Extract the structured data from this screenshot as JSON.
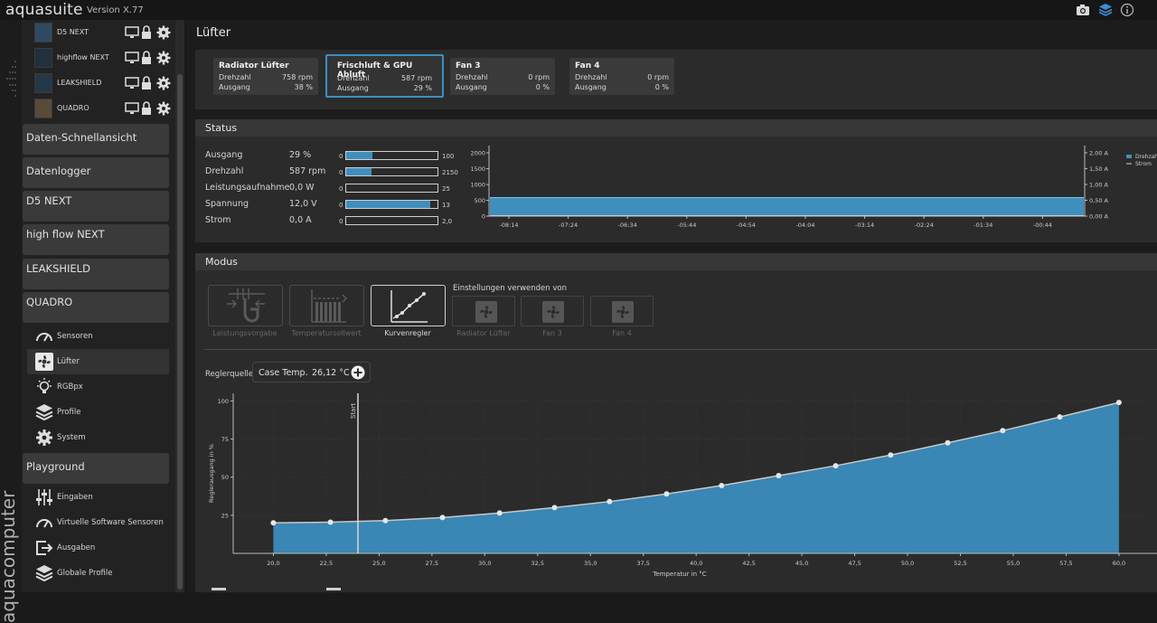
{
  "app": {
    "name": "aquasuite",
    "version": "Version X.77"
  },
  "brand_vertical": "aquacomputer",
  "sidebar": {
    "devices": [
      {
        "name": "D5 NEXT"
      },
      {
        "name": "highflow NEXT"
      },
      {
        "name": "LEAKSHIELD"
      },
      {
        "name": "QUADRO"
      }
    ],
    "sections": [
      "Daten-Schnellansicht",
      "Datenlogger",
      "D5 NEXT",
      "high flow NEXT",
      "LEAKSHIELD",
      "QUADRO"
    ],
    "quadro_items": [
      "Sensoren",
      "Lüfter",
      "RGBpx",
      "Profile",
      "System"
    ],
    "playground_label": "Playground",
    "playground_items": [
      "Eingaben",
      "Virtuelle Software Sensoren",
      "Ausgaben",
      "Globale Profile"
    ]
  },
  "page": {
    "title": "Lüfter"
  },
  "fans": [
    {
      "title": "Radiator Lüfter",
      "rpm_label": "Drehzahl",
      "rpm": "758 rpm",
      "out_label": "Ausgang",
      "out": "38 %"
    },
    {
      "title": "Frischluft & GPU Abluft",
      "rpm_label": "Drehzahl",
      "rpm": "587 rpm",
      "out_label": "Ausgang",
      "out": "29 %"
    },
    {
      "title": "Fan 3",
      "rpm_label": "Drehzahl",
      "rpm": "0 rpm",
      "out_label": "Ausgang",
      "out": "0 %"
    },
    {
      "title": "Fan 4",
      "rpm_label": "Drehzahl",
      "rpm": "0 rpm",
      "out_label": "Ausgang",
      "out": "0 %"
    }
  ],
  "status": {
    "title": "Status",
    "rows": [
      {
        "label": "Ausgang",
        "value": "29 %",
        "min": "0",
        "max": "100",
        "fraction": 0.29
      },
      {
        "label": "Drehzahl",
        "value": "587 rpm",
        "min": "0",
        "max": "2150",
        "fraction": 0.273
      },
      {
        "label": "Leistungsaufnahme",
        "value": "0,0 W",
        "min": "0",
        "max": "25",
        "fraction": 0
      },
      {
        "label": "Spannung",
        "value": "12,0 V",
        "min": "0",
        "max": "13",
        "fraction": 0.923
      },
      {
        "label": "Strom",
        "value": "0,0 A",
        "min": "0",
        "max": "2,0",
        "fraction": 0
      }
    ]
  },
  "mode": {
    "title": "Modus",
    "buttons": [
      {
        "label": "Leistungsvorgabe",
        "icon": "slider-hand-icon",
        "active": false
      },
      {
        "label": "Temperatursollwert",
        "icon": "bar-target-icon",
        "active": false
      },
      {
        "label": "Kurvenregler",
        "icon": "curve-icon",
        "active": true
      }
    ],
    "copy_title": "Einstellungen verwenden von",
    "copy_from": [
      "Radiator Lüfter",
      "Fan 3",
      "Fan 4"
    ],
    "source_label": "Reglerquelle",
    "source_name": "Case Temp.",
    "source_value": "26,12 °C"
  },
  "chart_data": [
    {
      "type": "area",
      "title": "",
      "x": [
        "-08:14",
        "-07:24",
        "-06:34",
        "-05:44",
        "-04:54",
        "-04:04",
        "-03:14",
        "-02:24",
        "-01:34",
        "-00:44"
      ],
      "y_left_ticks": [
        "2000",
        "1500",
        "1000",
        "500",
        "0"
      ],
      "y_right_ticks": [
        "2,00 A",
        "1,50 A",
        "1,00 A",
        "0,50 A",
        "0,00 A"
      ],
      "series": [
        {
          "name": "Drehzahl",
          "constant": 587,
          "color": "#3f8fbd"
        },
        {
          "name": "Strom",
          "constant": 0,
          "color": "#cccccc"
        }
      ],
      "ylim": [
        0,
        2150
      ]
    },
    {
      "type": "area",
      "title": "",
      "xlabel": "Temperatur in °C",
      "ylabel": "Reglerausgang in %",
      "x_ticks": [
        "20,0",
        "22,5",
        "25,0",
        "27,5",
        "30,0",
        "32,5",
        "35,0",
        "37,5",
        "40,0",
        "42,5",
        "45,0",
        "47,5",
        "50,0",
        "52,5",
        "55,0",
        "57,5",
        "60,0"
      ],
      "y_ticks": [
        "100",
        "75",
        "50",
        "25"
      ],
      "xlim": [
        18.1,
        61.2
      ],
      "ylim": [
        0,
        105
      ],
      "marker_label": "Start",
      "marker_x": 24.0,
      "points": [
        [
          20.0,
          20
        ],
        [
          22.7,
          20.5
        ],
        [
          25.3,
          21.5
        ],
        [
          28.0,
          23.5
        ],
        [
          30.7,
          26.5
        ],
        [
          33.3,
          30
        ],
        [
          35.9,
          34
        ],
        [
          38.6,
          39
        ],
        [
          41.2,
          44.5
        ],
        [
          43.9,
          51
        ],
        [
          46.6,
          57.5
        ],
        [
          49.2,
          64.5
        ],
        [
          51.9,
          72.5
        ],
        [
          54.5,
          80.5
        ],
        [
          57.2,
          89.5
        ],
        [
          60.0,
          99
        ]
      ]
    }
  ]
}
